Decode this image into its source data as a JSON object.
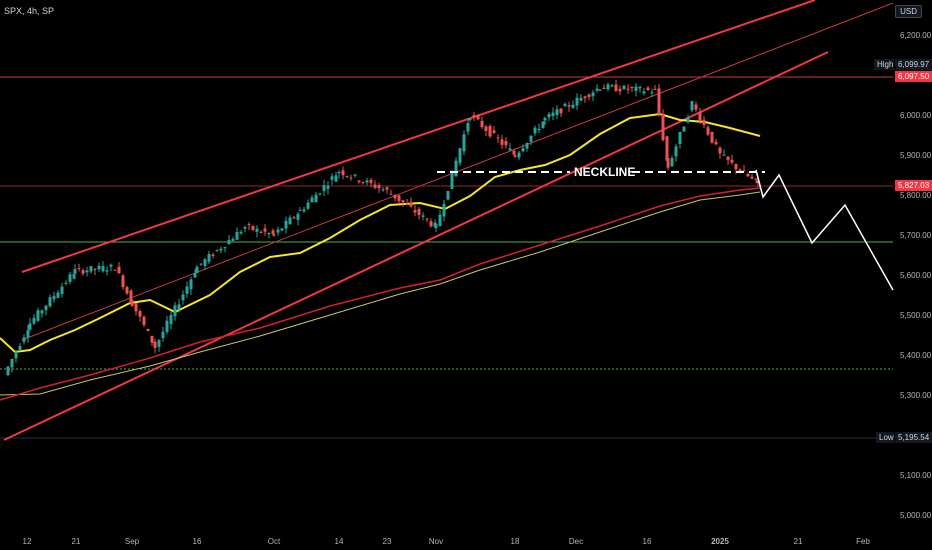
{
  "header": {
    "symbol": "SPX, 4h, SP",
    "currency": "USD"
  },
  "price_axis": {
    "ticks": [
      "6,200.00",
      "6,100.00",
      "6,000.00",
      "5,900.00",
      "5,800.00",
      "5,700.00",
      "5,600.00",
      "5,500.00",
      "5,400.00",
      "5,300.00",
      "5,200.00",
      "5,100.00",
      "5,000.00"
    ],
    "high_label": "High",
    "high_value": "6,099.97",
    "resistance_value": "6,097.50",
    "current_value": "5,827.03",
    "low_label": "Low",
    "low_value": "5,195.54"
  },
  "time_axis": {
    "ticks": [
      "12",
      "21",
      "Sep",
      "16",
      "Oct",
      "14",
      "23",
      "Nov",
      "18",
      "Dec",
      "16",
      "2025",
      "21",
      "Feb"
    ]
  },
  "annotations": {
    "neckline": "NECKLINE"
  },
  "colors": {
    "up": "#26a69a",
    "down": "#ef5350",
    "channel": "#f23645",
    "ma50": "#f5e52d",
    "ma200": "#d4202a",
    "ma_long": "#c5c766",
    "support": "#4caf50",
    "projection": "#ffffff"
  },
  "chart_data": {
    "type": "candlestick",
    "title": "SPX, 4h, SP",
    "ylim": [
      4950,
      6260
    ],
    "series_close": [
      {
        "t": "12",
        "v": 5350
      },
      {
        "t": "16",
        "v": 5480
      },
      {
        "t": "21",
        "v": 5610
      },
      {
        "t": "26",
        "v": 5620
      },
      {
        "t": "Sep",
        "v": 5530
      },
      {
        "t": "6",
        "v": 5420
      },
      {
        "t": "16",
        "v": 5620
      },
      {
        "t": "23",
        "v": 5720
      },
      {
        "t": "Oct",
        "v": 5700
      },
      {
        "t": "7",
        "v": 5760
      },
      {
        "t": "14",
        "v": 5860
      },
      {
        "t": "23",
        "v": 5810
      },
      {
        "t": "Nov",
        "v": 5720
      },
      {
        "t": "11",
        "v": 6000
      },
      {
        "t": "18",
        "v": 5900
      },
      {
        "t": "25",
        "v": 5990
      },
      {
        "t": "Dec",
        "v": 6070
      },
      {
        "t": "16",
        "v": 6060
      },
      {
        "t": "18",
        "v": 5870
      },
      {
        "t": "26",
        "v": 6030
      },
      {
        "t": "2025",
        "v": 5900
      },
      {
        "t": "10",
        "v": 5827
      }
    ],
    "levels": {
      "high": 6099.97,
      "resistance": 6097.5,
      "current": 5827.03,
      "support": 5690,
      "lower_support": 5365,
      "low": 5195.54,
      "neckline": 5855
    }
  }
}
